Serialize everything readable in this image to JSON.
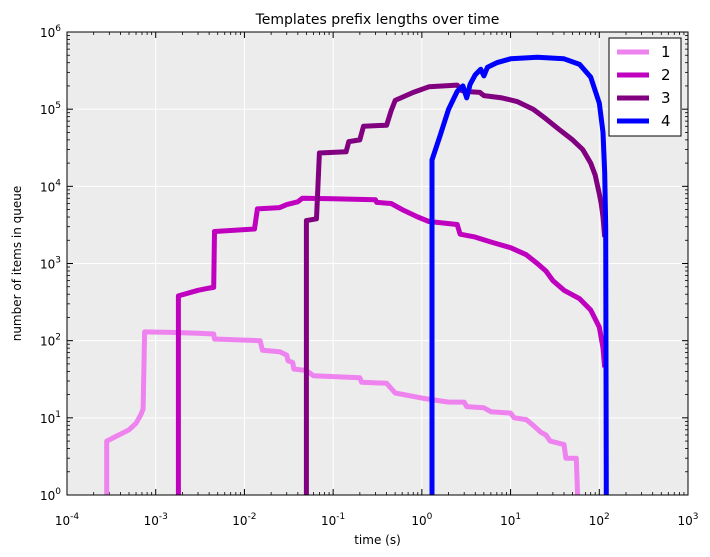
{
  "chart_data": {
    "type": "line",
    "title": "Templates prefix lengths over time",
    "xlabel": "time (s)",
    "ylabel": "number of items in queue",
    "xscale": "log",
    "yscale": "log",
    "xlim": [
      0.0001,
      1000
    ],
    "ylim": [
      1,
      1000000
    ],
    "x_ticks": [
      {
        "value": 0.0001,
        "base": "10",
        "exp": "-4"
      },
      {
        "value": 0.001,
        "base": "10",
        "exp": "-3"
      },
      {
        "value": 0.01,
        "base": "10",
        "exp": "-2"
      },
      {
        "value": 0.1,
        "base": "10",
        "exp": "-1"
      },
      {
        "value": 1,
        "base": "10",
        "exp": "0"
      },
      {
        "value": 10,
        "base": "10",
        "exp": "1"
      },
      {
        "value": 100,
        "base": "10",
        "exp": "2"
      },
      {
        "value": 1000,
        "base": "10",
        "exp": "3"
      }
    ],
    "y_ticks": [
      {
        "value": 1,
        "base": "10",
        "exp": "0"
      },
      {
        "value": 10,
        "base": "10",
        "exp": "1"
      },
      {
        "value": 100,
        "base": "10",
        "exp": "2"
      },
      {
        "value": 1000,
        "base": "10",
        "exp": "3"
      },
      {
        "value": 10000,
        "base": "10",
        "exp": "4"
      },
      {
        "value": 100000,
        "base": "10",
        "exp": "5"
      },
      {
        "value": 1000000,
        "base": "10",
        "exp": "6"
      }
    ],
    "grid": true,
    "background": "#ececec",
    "legend_position": "top-right",
    "series": [
      {
        "name": "1",
        "color": "#ee82ee",
        "points": [
          [
            0.00028,
            1
          ],
          [
            0.00028,
            5
          ],
          [
            0.0005,
            7
          ],
          [
            0.0006,
            8.5
          ],
          [
            0.00068,
            11
          ],
          [
            0.00072,
            13
          ],
          [
            0.00075,
            130
          ],
          [
            0.0015,
            128
          ],
          [
            0.003,
            125
          ],
          [
            0.0045,
            122
          ],
          [
            0.0046,
            105
          ],
          [
            0.015,
            100
          ],
          [
            0.016,
            75
          ],
          [
            0.025,
            72
          ],
          [
            0.03,
            65
          ],
          [
            0.031,
            55
          ],
          [
            0.035,
            52
          ],
          [
            0.036,
            43
          ],
          [
            0.05,
            41
          ],
          [
            0.06,
            35
          ],
          [
            0.2,
            33
          ],
          [
            0.21,
            29
          ],
          [
            0.4,
            28
          ],
          [
            0.5,
            21
          ],
          [
            1.0,
            18
          ],
          [
            2.0,
            16
          ],
          [
            3.0,
            16
          ],
          [
            3.2,
            14
          ],
          [
            5.0,
            13.5
          ],
          [
            6.0,
            12
          ],
          [
            10.0,
            11.5
          ],
          [
            11.0,
            10
          ],
          [
            15.0,
            9.5
          ],
          [
            18.0,
            8
          ],
          [
            22.0,
            6.5
          ],
          [
            25.0,
            6
          ],
          [
            28.0,
            5
          ],
          [
            40.0,
            4.5
          ],
          [
            42.0,
            3
          ],
          [
            55.0,
            3
          ],
          [
            57.0,
            1
          ]
        ]
      },
      {
        "name": "2",
        "color": "#bf00bf",
        "points": [
          [
            0.0018,
            1
          ],
          [
            0.0018,
            380
          ],
          [
            0.003,
            450
          ],
          [
            0.004,
            480
          ],
          [
            0.0045,
            490
          ],
          [
            0.0046,
            2600
          ],
          [
            0.013,
            2800
          ],
          [
            0.014,
            5100
          ],
          [
            0.025,
            5300
          ],
          [
            0.03,
            5800
          ],
          [
            0.04,
            6300
          ],
          [
            0.045,
            7000
          ],
          [
            0.1,
            6900
          ],
          [
            0.3,
            6700
          ],
          [
            0.31,
            6200
          ],
          [
            0.45,
            6000
          ],
          [
            0.6,
            5000
          ],
          [
            0.9,
            4000
          ],
          [
            1.2,
            3500
          ],
          [
            2.5,
            3200
          ],
          [
            2.7,
            2400
          ],
          [
            4.0,
            2200
          ],
          [
            6.0,
            1900
          ],
          [
            10.0,
            1600
          ],
          [
            15.0,
            1300
          ],
          [
            20.0,
            1000
          ],
          [
            25.0,
            800
          ],
          [
            30.0,
            600
          ],
          [
            40.0,
            450
          ],
          [
            60.0,
            350
          ],
          [
            80.0,
            250
          ],
          [
            100.0,
            150
          ],
          [
            110.0,
            80
          ],
          [
            115.0,
            45
          ]
        ]
      },
      {
        "name": "3",
        "color": "#800080",
        "points": [
          [
            0.05,
            1
          ],
          [
            0.05,
            3600
          ],
          [
            0.065,
            3800
          ],
          [
            0.07,
            27000
          ],
          [
            0.14,
            28000
          ],
          [
            0.15,
            38000
          ],
          [
            0.2,
            40000
          ],
          [
            0.22,
            60000
          ],
          [
            0.4,
            62000
          ],
          [
            0.45,
            95000
          ],
          [
            0.5,
            130000
          ],
          [
            0.8,
            165000
          ],
          [
            1.2,
            195000
          ],
          [
            2.5,
            205000
          ],
          [
            2.8,
            175000
          ],
          [
            3.0,
            170000
          ],
          [
            4.5,
            165000
          ],
          [
            5.0,
            150000
          ],
          [
            8.0,
            140000
          ],
          [
            12.0,
            125000
          ],
          [
            18.0,
            100000
          ],
          [
            25.0,
            75000
          ],
          [
            35.0,
            55000
          ],
          [
            50.0,
            40000
          ],
          [
            65.0,
            30000
          ],
          [
            80.0,
            20000
          ],
          [
            90.0,
            14000
          ],
          [
            100.0,
            8000
          ],
          [
            105.0,
            6000
          ],
          [
            110.0,
            4000
          ],
          [
            115.0,
            2200
          ]
        ]
      },
      {
        "name": "4",
        "color": "#0000ff",
        "points": [
          [
            1.3,
            1
          ],
          [
            1.3,
            22000
          ],
          [
            1.6,
            45000
          ],
          [
            2.0,
            100000
          ],
          [
            2.5,
            170000
          ],
          [
            2.9,
            200000
          ],
          [
            3.2,
            140000
          ],
          [
            3.5,
            210000
          ],
          [
            4.0,
            280000
          ],
          [
            4.6,
            330000
          ],
          [
            5.0,
            270000
          ],
          [
            5.5,
            350000
          ],
          [
            7.0,
            400000
          ],
          [
            10.0,
            450000
          ],
          [
            20.0,
            470000
          ],
          [
            40.0,
            450000
          ],
          [
            60.0,
            380000
          ],
          [
            80.0,
            260000
          ],
          [
            100.0,
            120000
          ],
          [
            110.0,
            50000
          ],
          [
            115.0,
            15000
          ],
          [
            118.0,
            3000
          ],
          [
            120.0,
            1
          ]
        ]
      }
    ]
  }
}
